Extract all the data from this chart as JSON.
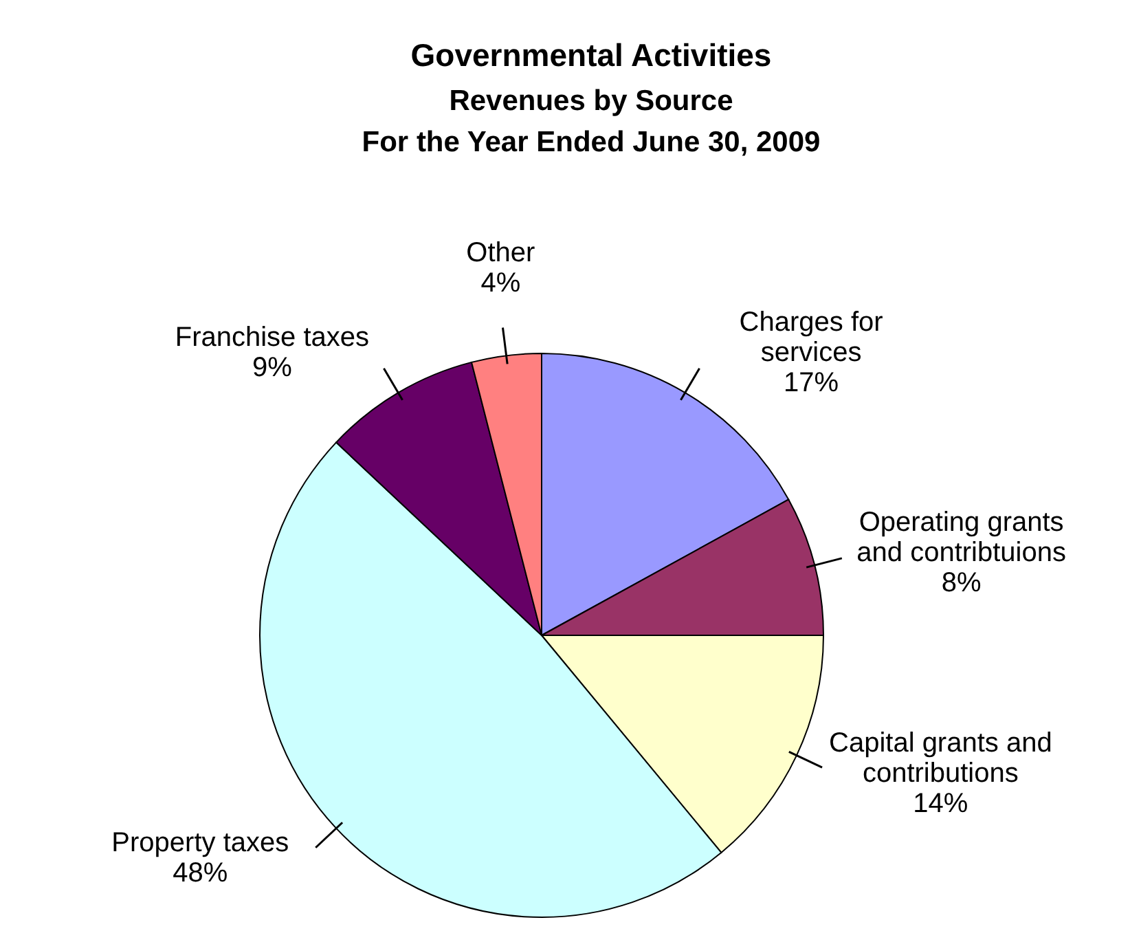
{
  "chart_data": {
    "type": "pie",
    "title": "Governmental Activities",
    "subtitle": "Revenues by Source\nFor the Year Ended June 30, 2009",
    "categories": [
      "Charges for services",
      "Operating grants and contribtuions",
      "Capital grants and contributions",
      "Property taxes",
      "Franchise taxes",
      "Other"
    ],
    "values": [
      17,
      8,
      14,
      48,
      9,
      4
    ],
    "value_labels": [
      "17%",
      "8%",
      "14%",
      "48%",
      "9%",
      "4%"
    ],
    "colors": [
      "#9999ff",
      "#993366",
      "#ffffcc",
      "#ccffff",
      "#660066",
      "#ff8080"
    ]
  }
}
